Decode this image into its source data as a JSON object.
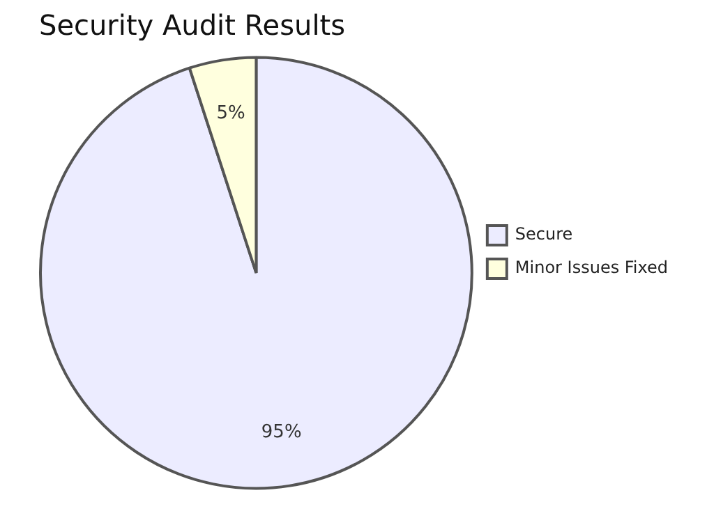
{
  "chart_data": {
    "type": "pie",
    "title": "Security Audit Results",
    "categories": [
      "Secure",
      "Minor Issues Fixed"
    ],
    "values": [
      95,
      5
    ],
    "colors": [
      "#ececff",
      "#ffffde"
    ],
    "value_labels": [
      "95%",
      "5%"
    ],
    "legend": "right"
  }
}
